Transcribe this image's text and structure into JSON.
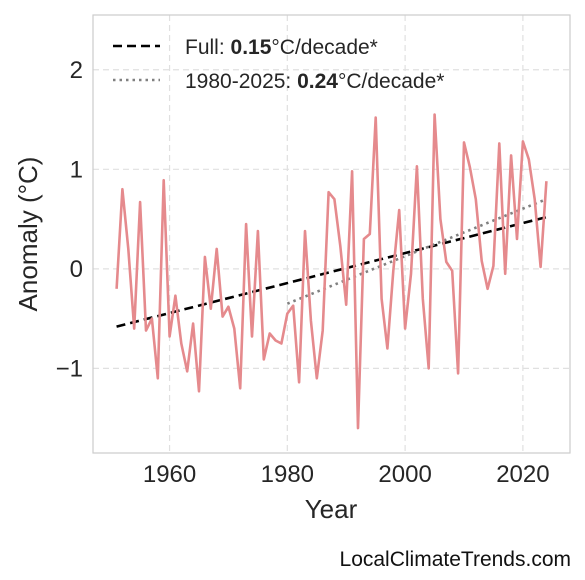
{
  "chart_data": {
    "type": "line",
    "xlabel": "Year",
    "ylabel": "Anomaly (°C)",
    "xlim": [
      1947,
      2028
    ],
    "ylim": [
      -1.85,
      2.55
    ],
    "xticks": [
      1960,
      1980,
      2000,
      2020
    ],
    "yticks": [
      -1,
      0,
      1,
      2
    ],
    "ytick_labels": [
      "−1",
      "0",
      "1",
      "2"
    ],
    "grid": true,
    "legend_position": "top-left",
    "colors": {
      "series": "#e58a8d",
      "full_trend": "#000000",
      "recent_trend": "#808080"
    },
    "series": [
      {
        "x": [
          1951,
          1952,
          1953,
          1954,
          1955,
          1956,
          1957,
          1958,
          1959,
          1960,
          1961,
          1962,
          1963,
          1964,
          1965,
          1966,
          1967,
          1968,
          1969,
          1970,
          1971,
          1972,
          1973,
          1974,
          1975,
          1976,
          1977,
          1978,
          1979,
          1980,
          1981,
          1982,
          1983,
          1984,
          1985,
          1986,
          1987,
          1988,
          1989,
          1990,
          1991,
          1992,
          1993,
          1994,
          1995,
          1996,
          1997,
          1998,
          1999,
          2000,
          2001,
          2002,
          2003,
          2004,
          2005,
          2006,
          2007,
          2008,
          2009,
          2010,
          2011,
          2012,
          2013,
          2014,
          2015,
          2016,
          2017,
          2018,
          2019,
          2020,
          2021,
          2022,
          2023,
          2024
        ],
        "values": [
          -0.2,
          0.8,
          0.2,
          -0.6,
          0.67,
          -0.62,
          -0.5,
          -1.1,
          0.89,
          -0.68,
          -0.27,
          -0.75,
          -1.03,
          -0.55,
          -1.23,
          0.12,
          -0.4,
          0.2,
          -0.48,
          -0.38,
          -0.6,
          -1.2,
          0.45,
          -0.68,
          0.38,
          -0.91,
          -0.65,
          -0.72,
          -0.75,
          -0.45,
          -0.37,
          -1.14,
          0.38,
          -0.52,
          -1.1,
          -0.62,
          0.77,
          0.7,
          0.23,
          -0.36,
          0.98,
          -1.6,
          0.3,
          0.35,
          1.52,
          -0.3,
          -0.8,
          -0.02,
          0.59,
          -0.6,
          -0.05,
          1.03,
          -0.3,
          -1.0,
          1.55,
          0.5,
          0.07,
          -0.02,
          -1.05,
          1.27,
          1.02,
          0.7,
          0.08,
          -0.2,
          0.03,
          1.26,
          -0.05,
          1.14,
          0.3,
          1.28,
          1.1,
          0.7,
          0.02,
          0.88
        ]
      }
    ],
    "trends": [
      {
        "label_prefix": "Full: ",
        "value": "0.15",
        "label_suffix": "°C/decade*",
        "x": [
          1951,
          2024
        ],
        "y": [
          -0.58,
          0.52
        ],
        "style": "dashed"
      },
      {
        "label_prefix": "1980-2025: ",
        "value": "0.24",
        "label_suffix": "°C/decade*",
        "x": [
          1980,
          2024
        ],
        "y": [
          -0.35,
          0.7
        ],
        "style": "dotted"
      }
    ]
  },
  "footer": "LocalClimateTrends.com"
}
